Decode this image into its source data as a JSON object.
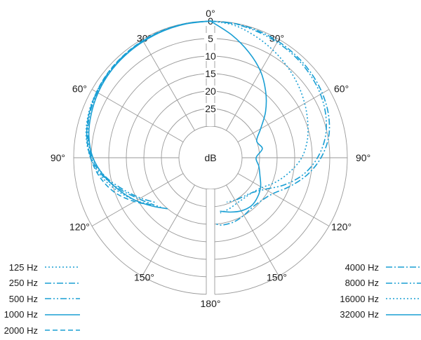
{
  "chart_data": {
    "type": "polar",
    "center_label": "dB",
    "angle_labels": [
      {
        "deg": 0,
        "text": "0°"
      },
      {
        "deg": -30,
        "text": "30°"
      },
      {
        "deg": 30,
        "text": "30°"
      },
      {
        "deg": -60,
        "text": "60°"
      },
      {
        "deg": 60,
        "text": "60°"
      },
      {
        "deg": -90,
        "text": "90°"
      },
      {
        "deg": 90,
        "text": "90°"
      },
      {
        "deg": -120,
        "text": "120°"
      },
      {
        "deg": 120,
        "text": "120°"
      },
      {
        "deg": -150,
        "text": "150°"
      },
      {
        "deg": 150,
        "text": "150°"
      },
      {
        "deg": 180,
        "text": "180°"
      }
    ],
    "ring_labels": [
      "0",
      "5",
      "10",
      "15",
      "20",
      "25"
    ],
    "rlim": [
      -30,
      0
    ],
    "color": "#1a9fd4",
    "grid_color": "#9a9a9a",
    "left_series": [
      {
        "name": "125 Hz",
        "style": "dot",
        "angles": [
          0,
          -10,
          -20,
          -30,
          -40,
          -50,
          -60,
          -70,
          -80,
          -90,
          -100,
          -110,
          -120,
          -130,
          -135
        ],
        "values": [
          0,
          -0.1,
          -0.3,
          -0.5,
          -0.8,
          -1.1,
          -1.5,
          -2.0,
          -3.0,
          -4.8,
          -7.5,
          -11,
          -14.5,
          -18,
          -19
        ]
      },
      {
        "name": "250 Hz",
        "style": "dashdot",
        "angles": [
          0,
          -10,
          -20,
          -30,
          -40,
          -50,
          -60,
          -70,
          -80,
          -90,
          -100,
          -110,
          -120,
          -130
        ],
        "values": [
          0,
          -0.1,
          -0.3,
          -0.5,
          -0.8,
          -1.1,
          -1.6,
          -2.2,
          -3.2,
          -5.0,
          -8.0,
          -12,
          -15.5,
          -18
        ]
      },
      {
        "name": "500 Hz",
        "style": "dashdotdot",
        "angles": [
          0,
          -10,
          -20,
          -30,
          -40,
          -50,
          -60,
          -70,
          -80,
          -90,
          -100,
          -110,
          -120,
          -130
        ],
        "values": [
          0,
          -0.1,
          -0.3,
          -0.5,
          -0.8,
          -1.2,
          -1.7,
          -2.4,
          -3.5,
          -5.3,
          -8.5,
          -12.5,
          -16,
          -19
        ]
      },
      {
        "name": "1000 Hz",
        "style": "solid",
        "angles": [
          0,
          -10,
          -20,
          -30,
          -40,
          -50,
          -60,
          -70,
          -80,
          -90,
          -100,
          -110,
          -120,
          -130,
          -140
        ],
        "values": [
          0,
          -0.2,
          -0.4,
          -0.7,
          -1.0,
          -1.4,
          -2.0,
          -2.8,
          -3.8,
          -5.5,
          -8.3,
          -11.5,
          -14.5,
          -17.5,
          -20
        ]
      },
      {
        "name": "2000 Hz",
        "style": "dash",
        "angles": [
          0,
          -10,
          -20,
          -30,
          -40,
          -50,
          -60,
          -70,
          -80,
          -90,
          -100,
          -110,
          -120,
          -130
        ],
        "values": [
          0,
          -0.1,
          -0.2,
          -0.4,
          -0.7,
          -1.0,
          -1.5,
          -2.2,
          -3.2,
          -4.8,
          -7.0,
          -10,
          -14,
          -18
        ]
      }
    ],
    "right_series": [
      {
        "name": "4000 Hz",
        "style": "dashdot",
        "angles": [
          0,
          10,
          20,
          30,
          40,
          50,
          60,
          70,
          80,
          90,
          100,
          110,
          120,
          130,
          140,
          150,
          160,
          170,
          175
        ],
        "values": [
          0,
          -0.1,
          -0.3,
          -0.6,
          -1.0,
          -1.5,
          -2.2,
          -3.2,
          -4.8,
          -7.5,
          -11,
          -15,
          -18.5,
          -20,
          -20.5,
          -20,
          -19.5,
          -19.5,
          -20
        ]
      },
      {
        "name": "8000 Hz",
        "style": "dashdotdot",
        "angles": [
          0,
          10,
          20,
          30,
          40,
          50,
          60,
          70,
          80,
          90,
          100,
          110,
          120,
          130,
          140,
          150,
          160
        ],
        "values": [
          0,
          -0.2,
          -0.6,
          -1.0,
          -1.4,
          -2.0,
          -2.8,
          -4.0,
          -5.8,
          -8.5,
          -12,
          -16.5,
          -21,
          -23.5,
          -24.5,
          -25,
          -25.5
        ]
      },
      {
        "name": "16000 Hz",
        "style": "dot",
        "angles": [
          0,
          10,
          20,
          30,
          40,
          50,
          60,
          70,
          80,
          90,
          100,
          110,
          120,
          130,
          140,
          150,
          160,
          170
        ],
        "values": [
          0,
          -0.6,
          -2.0,
          -3.5,
          -5.0,
          -6.5,
          -8.0,
          -9.5,
          -11,
          -13,
          -16,
          -19,
          -22,
          -23.5,
          -24,
          -24,
          -23.5,
          -23
        ]
      },
      {
        "name": "32000 Hz",
        "style": "solid",
        "angles": [
          0,
          10,
          20,
          30,
          40,
          50,
          60,
          70,
          80,
          90,
          100,
          110,
          120,
          130,
          140,
          150,
          160,
          170
        ],
        "values": [
          0,
          -3.5,
          -7.0,
          -10.5,
          -14.5,
          -18.5,
          -22.5,
          -25,
          -24,
          -26,
          -25,
          -24,
          -22.5,
          -21.5,
          -21,
          -21.5,
          -22.5,
          -23.5
        ]
      }
    ],
    "legend_left": [
      {
        "label": "125 Hz",
        "style": "dot"
      },
      {
        "label": "250 Hz",
        "style": "dashdot"
      },
      {
        "label": "500 Hz",
        "style": "dashdotdot"
      },
      {
        "label": "1000 Hz",
        "style": "solid"
      },
      {
        "label": "2000 Hz",
        "style": "dash"
      }
    ],
    "legend_right": [
      {
        "label": "4000 Hz",
        "style": "dashdot"
      },
      {
        "label": "8000 Hz",
        "style": "dashdotdot"
      },
      {
        "label": "16000 Hz",
        "style": "dot"
      },
      {
        "label": "32000 Hz",
        "style": "solid"
      }
    ]
  }
}
